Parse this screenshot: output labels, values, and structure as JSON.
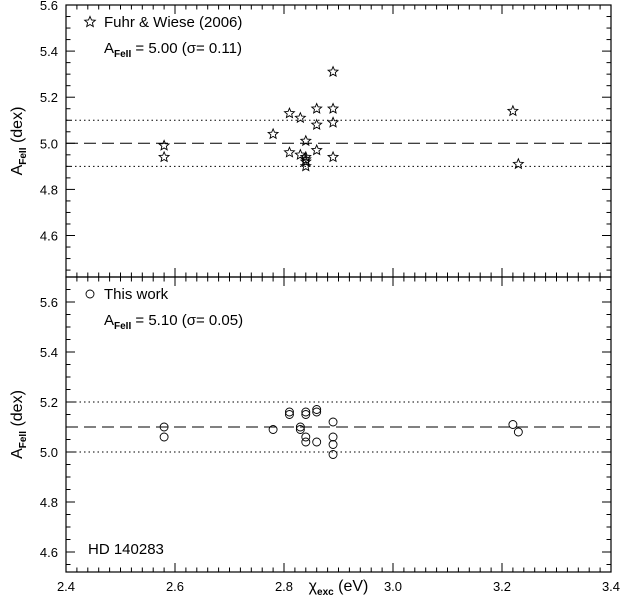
{
  "chart_data": [
    {
      "type": "scatter",
      "panel": "top",
      "legend": {
        "marker": "star",
        "label": "Fuhr & Wiese (2006)",
        "abundance_prefix": "A",
        "abundance_sub": "FeII",
        "abundance_text": " = 5.00 (σ= 0.11)"
      },
      "xlim": [
        2.4,
        3.4
      ],
      "ylim": [
        4.42,
        5.6
      ],
      "yticks": [
        "4.6",
        "4.8",
        "5.0",
        "5.2",
        "5.4",
        "5.6"
      ],
      "ylabel_prefix": "A",
      "ylabel_sub": "FeII",
      "ylabel_suffix": " (dex)",
      "mean": 5.0,
      "sigma_lines": [
        4.9,
        5.1
      ],
      "points": [
        [
          2.58,
          4.99
        ],
        [
          2.58,
          4.94
        ],
        [
          2.78,
          5.04
        ],
        [
          2.81,
          5.13
        ],
        [
          2.81,
          4.96
        ],
        [
          2.83,
          5.11
        ],
        [
          2.83,
          4.95
        ],
        [
          2.84,
          5.01
        ],
        [
          2.84,
          4.94
        ],
        [
          2.84,
          4.93
        ],
        [
          2.84,
          4.92
        ],
        [
          2.84,
          4.9
        ],
        [
          2.86,
          5.15
        ],
        [
          2.86,
          5.08
        ],
        [
          2.86,
          4.97
        ],
        [
          2.89,
          5.31
        ],
        [
          2.89,
          5.15
        ],
        [
          2.89,
          5.09
        ],
        [
          2.89,
          4.94
        ],
        [
          3.22,
          5.14
        ],
        [
          3.23,
          4.91
        ]
      ]
    },
    {
      "type": "scatter",
      "panel": "bottom",
      "legend": {
        "marker": "circle",
        "label": "This work",
        "abundance_prefix": "A",
        "abundance_sub": "FeII",
        "abundance_text": " = 5.10 (σ= 0.05)"
      },
      "annotation": "HD 140283",
      "xlim": [
        2.4,
        3.4
      ],
      "ylim": [
        4.52,
        5.7
      ],
      "xticks": [
        "2.4",
        "2.6",
        "2.8",
        "3.0",
        "3.2",
        "3.4"
      ],
      "yticks": [
        "4.6",
        "4.8",
        "5.0",
        "5.2",
        "5.4",
        "5.6"
      ],
      "xlabel_prefix": "χ",
      "xlabel_sub": "exc",
      "xlabel_suffix": " (eV)",
      "ylabel_prefix": "A",
      "ylabel_sub": "FeII",
      "ylabel_suffix": " (dex)",
      "mean": 5.1,
      "sigma_lines": [
        5.0,
        5.2
      ],
      "points": [
        [
          2.58,
          5.1
        ],
        [
          2.58,
          5.06
        ],
        [
          2.78,
          5.09
        ],
        [
          2.81,
          5.16
        ],
        [
          2.81,
          5.15
        ],
        [
          2.83,
          5.1
        ],
        [
          2.83,
          5.09
        ],
        [
          2.84,
          5.16
        ],
        [
          2.84,
          5.15
        ],
        [
          2.84,
          5.06
        ],
        [
          2.84,
          5.04
        ],
        [
          2.86,
          5.17
        ],
        [
          2.86,
          5.16
        ],
        [
          2.86,
          5.04
        ],
        [
          2.89,
          5.12
        ],
        [
          2.89,
          5.06
        ],
        [
          2.89,
          5.03
        ],
        [
          2.89,
          4.99
        ],
        [
          3.22,
          5.11
        ],
        [
          3.23,
          5.08
        ]
      ]
    }
  ]
}
